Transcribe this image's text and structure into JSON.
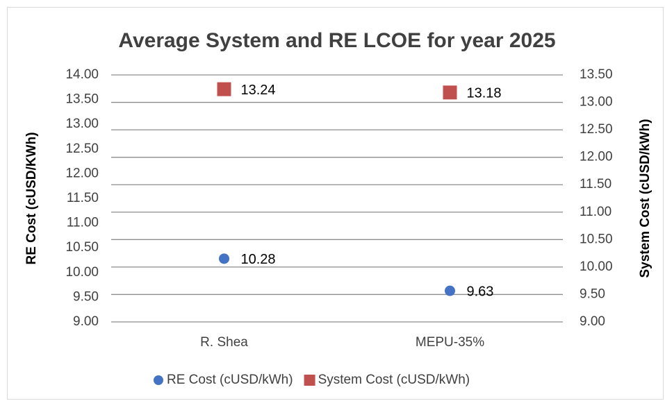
{
  "chart_data": {
    "type": "scatter",
    "title": "Average System and RE LCOE for year 2025",
    "ylabel": "RE Cost (cUSD/KWh)",
    "y2label": "System Cost (cUSD/kWh)",
    "categories": [
      "R. Shea",
      "MEPU-35%"
    ],
    "series": [
      {
        "name": "RE Cost (cUSD/kWh)",
        "color": "#4472c4",
        "marker": "circle",
        "values": [
          10.28,
          9.63
        ]
      },
      {
        "name": "System Cost (cUSD/kWh)",
        "color": "#c0504d",
        "marker": "square",
        "axis": "y2",
        "values": [
          13.24,
          13.18
        ]
      }
    ],
    "ylim": [
      9,
      14
    ],
    "yticks": [
      {
        "value": 9,
        "label": "9.00"
      },
      {
        "value": 9.5,
        "label": "9.50"
      },
      {
        "value": 10,
        "label": "10.00"
      },
      {
        "value": 10.5,
        "label": "10.50"
      },
      {
        "value": 11,
        "label": "11.00"
      },
      {
        "value": 11.5,
        "label": "11.50"
      },
      {
        "value": 12,
        "label": "12.00"
      },
      {
        "value": 12.5,
        "label": "12.50"
      },
      {
        "value": 13,
        "label": "13.00"
      },
      {
        "value": 13.5,
        "label": "13.50"
      },
      {
        "value": 14,
        "label": "14.00"
      }
    ],
    "y2lim": [
      9,
      13.5
    ],
    "y2ticks": [
      {
        "value": 9,
        "label": "9.00"
      },
      {
        "value": 9.5,
        "label": "9.50"
      },
      {
        "value": 10,
        "label": "10.00"
      },
      {
        "value": 10.5,
        "label": "10.50"
      },
      {
        "value": 11,
        "label": "11.00"
      },
      {
        "value": 11.5,
        "label": "11.50"
      },
      {
        "value": 12,
        "label": "12.00"
      },
      {
        "value": 12.5,
        "label": "12.50"
      },
      {
        "value": 13,
        "label": "13.00"
      },
      {
        "value": 13.5,
        "label": "13.50"
      }
    ],
    "grid": true,
    "legend": "bottom"
  }
}
